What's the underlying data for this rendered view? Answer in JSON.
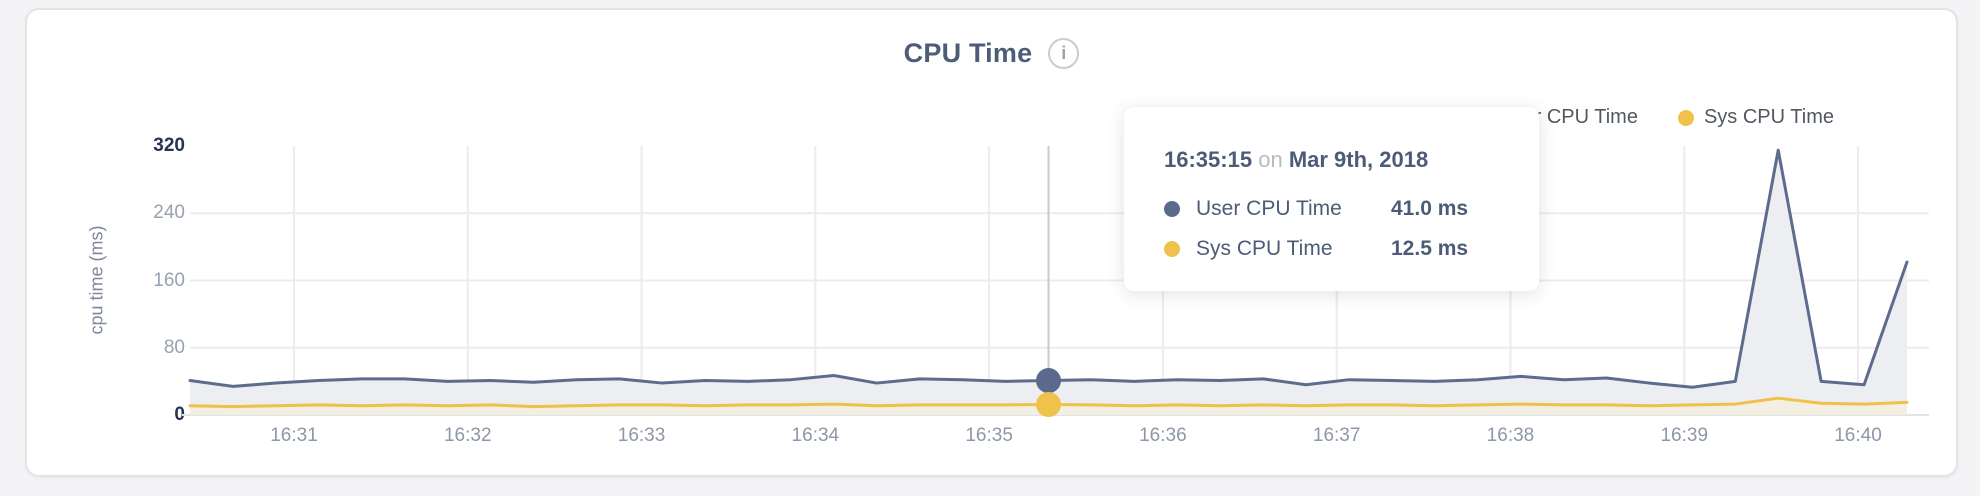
{
  "header": {
    "title": "CPU Time",
    "info_icon": "i"
  },
  "legend": {
    "items": [
      {
        "label": "User CPU Time",
        "color": "#5b6a8c"
      },
      {
        "label": "Sys CPU Time",
        "color": "#f0c24b"
      }
    ]
  },
  "axes": {
    "y_label": "cpu time (ms)",
    "y_ticks": [
      "320",
      "240",
      "160",
      "80",
      "0"
    ],
    "x_ticks": [
      "16:31",
      "16:32",
      "16:33",
      "16:34",
      "16:35",
      "16:36",
      "16:37",
      "16:38",
      "16:39",
      "16:40"
    ]
  },
  "tooltip": {
    "time": "16:35:15",
    "connector": "on",
    "date": "Mar 9th, 2018",
    "rows": [
      {
        "label": "User CPU Time",
        "value": "41.0 ms",
        "color": "#5b6a8c"
      },
      {
        "label": "Sys CPU Time",
        "value": "12.5 ms",
        "color": "#f0c24b"
      }
    ]
  },
  "chart_data": {
    "type": "area",
    "title": "CPU Time",
    "ylabel": "cpu time (ms)",
    "ylim": [
      0,
      320
    ],
    "y_tick_step": 80,
    "grid": true,
    "legend_position": "top-right",
    "x": [
      "16:30:15",
      "16:30:30",
      "16:30:45",
      "16:31:00",
      "16:31:15",
      "16:31:30",
      "16:31:45",
      "16:32:00",
      "16:32:15",
      "16:32:30",
      "16:32:45",
      "16:33:00",
      "16:33:15",
      "16:33:30",
      "16:33:45",
      "16:34:00",
      "16:34:15",
      "16:34:30",
      "16:34:45",
      "16:35:00",
      "16:35:15",
      "16:35:30",
      "16:35:45",
      "16:36:00",
      "16:36:15",
      "16:36:30",
      "16:36:45",
      "16:37:00",
      "16:37:15",
      "16:37:30",
      "16:37:45",
      "16:38:00",
      "16:38:15",
      "16:38:30",
      "16:38:45",
      "16:39:00",
      "16:39:15",
      "16:39:30",
      "16:39:45",
      "16:40:00",
      "16:40:15"
    ],
    "series": [
      {
        "name": "User CPU Time",
        "color": "#5d6c8e",
        "fill": "#eceef2",
        "values": [
          41,
          34,
          38,
          41,
          43,
          43,
          40,
          41,
          39,
          42,
          43,
          38,
          41,
          40,
          42,
          47,
          38,
          43,
          42,
          40,
          41,
          42,
          40,
          42,
          41,
          43,
          36,
          42,
          41,
          40,
          42,
          46,
          42,
          44,
          38,
          33,
          40,
          315,
          40,
          36,
          182
        ]
      },
      {
        "name": "Sys CPU Time",
        "color": "#efc14b",
        "fill": "#f3efe2",
        "values": [
          11,
          10,
          11,
          12,
          11,
          12,
          11,
          12,
          10,
          11,
          12,
          12,
          11,
          12,
          12,
          13,
          11,
          12,
          12,
          12,
          12.5,
          12,
          11,
          12,
          11,
          12,
          11,
          12,
          12,
          11,
          12,
          13,
          12,
          12,
          11,
          12,
          13,
          20,
          14,
          13,
          15
        ]
      }
    ],
    "hover": {
      "index": 20,
      "time": "16:35:15",
      "user_value_ms": 41.0,
      "sys_value_ms": 12.5,
      "line_color": "#c8cacc"
    },
    "colors": {
      "grid": "#ececee",
      "axis_line": "#e3e3e5"
    }
  }
}
